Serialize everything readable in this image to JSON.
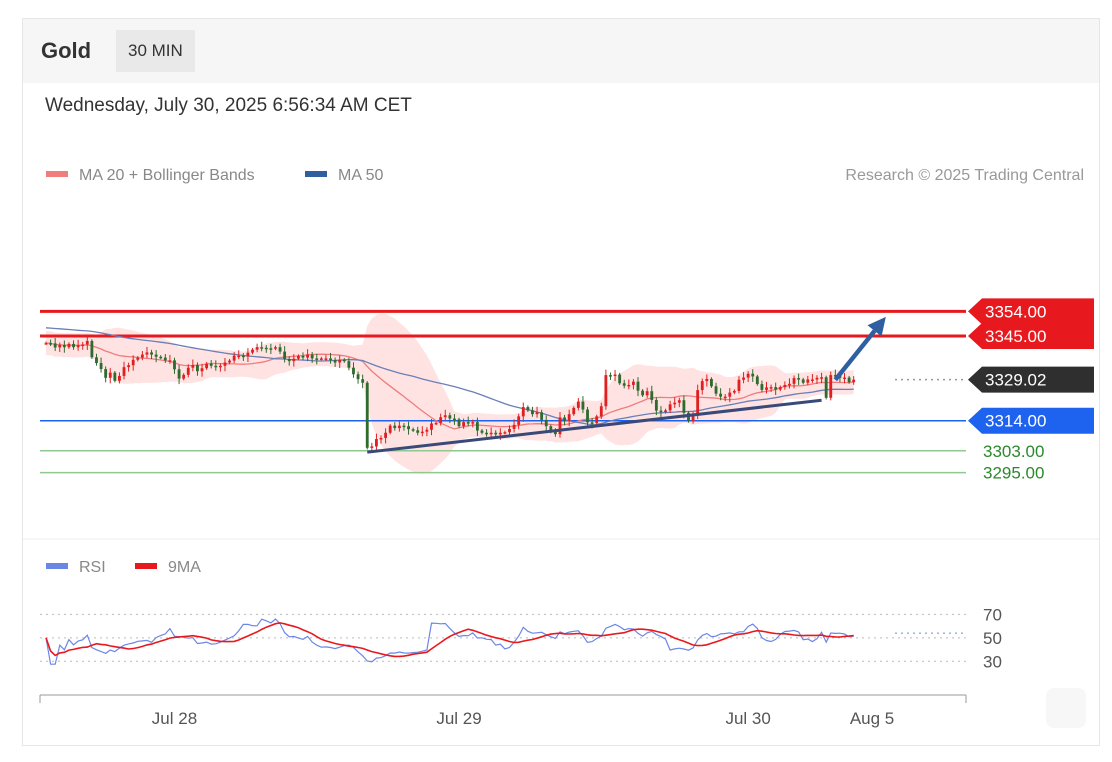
{
  "header": {
    "symbol": "Gold",
    "timeframe": "30 MIN",
    "datetime": "Wednesday, July 30, 2025 6:56:34 AM CET"
  },
  "colors": {
    "resistance": "#e8191e",
    "pivot": "#1e62f0",
    "support": "#2a8a2a",
    "last": "#2f2f2f",
    "ma20": "#f07c7c",
    "ma50": "#3d5fa8",
    "band": "#ffd9d9",
    "rsi": "#6b87e6",
    "rsi_ma": "#e8191e",
    "arrow": "#2f5fa0"
  },
  "chart_data": [
    {
      "type": "candlestick",
      "title": "Gold 30 MIN",
      "legend": [
        {
          "label": "MA 20 + Bollinger Bands",
          "color": "#f07c7c"
        },
        {
          "label": "MA 50",
          "color": "#2f5fa0"
        }
      ],
      "copyright": "Research © 2025 Trading Central",
      "ylim": [
        3285,
        3375
      ],
      "xlim": [
        0,
        185
      ],
      "levels": [
        {
          "value": 3354.0,
          "label": "3354.00",
          "kind": "resistance"
        },
        {
          "value": 3345.0,
          "label": "3345.00",
          "kind": "resistance"
        },
        {
          "value": 3329.02,
          "label": "3329.02",
          "kind": "last"
        },
        {
          "value": 3314.0,
          "label": "3314.00",
          "kind": "pivot"
        },
        {
          "value": 3303.0,
          "label": "3303.00",
          "kind": "support"
        },
        {
          "value": 3295.0,
          "label": "3295.00",
          "kind": "support"
        }
      ],
      "trendline": {
        "x": [
          70,
          169
        ],
        "y": [
          3302.5,
          3321.5
        ]
      },
      "forecast_arrow": {
        "from": [
          172,
          3329
        ],
        "to": [
          183,
          3352
        ]
      },
      "series": {
        "close": [
          3342.4,
          3342.3,
          3340.8,
          3341.7,
          3340.9,
          3342.1,
          3340.9,
          3341.6,
          3341.9,
          3343.2,
          3337.2,
          3335.1,
          3332.9,
          3329.7,
          3331.6,
          3328.6,
          3330.4,
          3333.6,
          3334.3,
          3336.3,
          3337.1,
          3338.2,
          3339.0,
          3338.2,
          3337.4,
          3337.1,
          3336.1,
          3336.1,
          3332.8,
          3329.4,
          3330.8,
          3333.4,
          3334.4,
          3332.1,
          3333.2,
          3334.9,
          3334.1,
          3333.6,
          3334.1,
          3335.3,
          3336.0,
          3337.8,
          3337.8,
          3337.5,
          3338.9,
          3340.0,
          3340.9,
          3340.7,
          3340.5,
          3340.4,
          3340.9,
          3339.3,
          3336.6,
          3335.8,
          3336.7,
          3337.7,
          3337.1,
          3338.2,
          3336.8,
          3336.6,
          3336.8,
          3336.8,
          3336.2,
          3335.3,
          3336.3,
          3335.8,
          3333.4,
          3331.0,
          3329.2,
          3327.9,
          3304.1,
          3304.6,
          3307.3,
          3307.7,
          3309.6,
          3312.2,
          3311.3,
          3312.2,
          3312.0,
          3310.9,
          3310.5,
          3309.6,
          3310.0,
          3310.7,
          3313.0,
          3313.2,
          3315.3,
          3316.0,
          3314.8,
          3314.5,
          3312.0,
          3313.5,
          3313.2,
          3313.5,
          3310.4,
          3309.6,
          3309.1,
          3309.6,
          3309.0,
          3309.6,
          3309.8,
          3311.0,
          3312.5,
          3315.6,
          3319.0,
          3317.8,
          3316.4,
          3317.1,
          3314.3,
          3312.0,
          3310.0,
          3309.1,
          3315.2,
          3314.0,
          3316.4,
          3318.7,
          3321.0,
          3318.1,
          3313.4,
          3313.2,
          3315.6,
          3319.3,
          3330.7,
          3330.5,
          3330.9,
          3327.7,
          3326.8,
          3327.1,
          3328.3,
          3325.0,
          3323.3,
          3324.8,
          3321.6,
          3317.7,
          3317.2,
          3317.8,
          3320.0,
          3320.6,
          3321.5,
          3316.9,
          3313.9,
          3315.9,
          3325.2,
          3328.5,
          3329.3,
          3326.6,
          3323.9,
          3322.8,
          3322.8,
          3324.3,
          3324.9,
          3329.0,
          3329.8,
          3331.2,
          3330.2,
          3327.4,
          3325.3,
          3326.2,
          3326.3,
          3325.4,
          3326.3,
          3327.1,
          3327.5,
          3329.6,
          3329.1,
          3327.9,
          3329.1,
          3329.1,
          3329.7,
          3329.9,
          3322.4,
          3330.7,
          3330.5,
          3329.7,
          3329.8,
          3328.1,
          3329.02
        ]
      }
    },
    {
      "type": "line",
      "title": "RSI",
      "legend": [
        {
          "label": "RSI",
          "color": "#6b87e6"
        },
        {
          "label": "9MA",
          "color": "#e8191e"
        }
      ],
      "ylim": [
        20,
        78
      ],
      "yticks": [
        {
          "value": 70,
          "label": "70"
        },
        {
          "value": 50,
          "label": "50"
        },
        {
          "value": 30,
          "label": "30"
        }
      ],
      "xticks": [
        {
          "x": 28,
          "label": "Jul 28"
        },
        {
          "x": 90,
          "label": "Jul 29"
        },
        {
          "x": 153,
          "label": "Jul 30"
        },
        {
          "x": 180,
          "label": "Aug 5"
        }
      ]
    }
  ]
}
